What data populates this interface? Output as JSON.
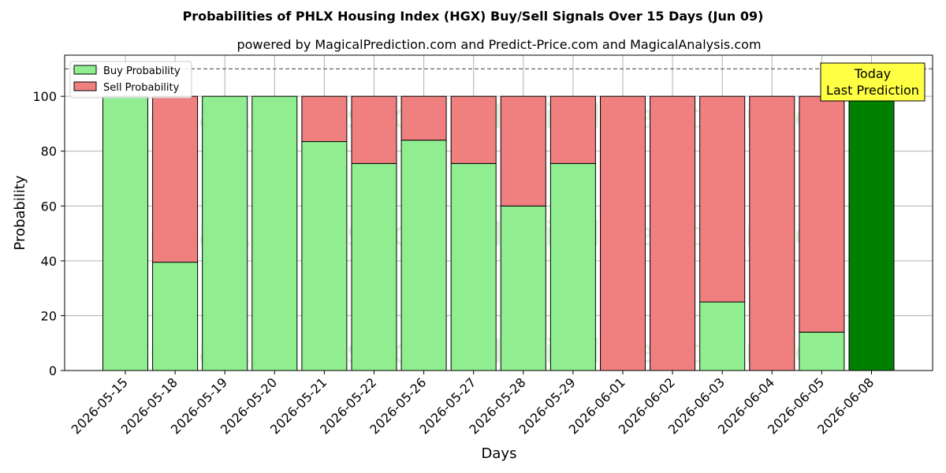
{
  "chart_data": {
    "type": "bar",
    "stacked": true,
    "title": "Probabilities of PHLX Housing Index (HGX) Buy/Sell Signals Over 15 Days (Jun 09)",
    "subtitle": "powered by MagicalPrediction.com and Predict-Price.com and MagicalAnalysis.com",
    "xlabel": "Days",
    "ylabel": "Probability",
    "ylim": [
      0,
      115
    ],
    "yticks": [
      0,
      20,
      40,
      60,
      80,
      100
    ],
    "reference_line": 110,
    "grid": true,
    "legend_position": "top-left",
    "categories": [
      "2026-05-15",
      "2026-05-18",
      "2026-05-19",
      "2026-05-20",
      "2026-05-21",
      "2026-05-22",
      "2026-05-26",
      "2026-05-27",
      "2026-05-28",
      "2026-05-29",
      "2026-06-01",
      "2026-06-02",
      "2026-06-03",
      "2026-06-04",
      "2026-06-05",
      "2026-06-08"
    ],
    "series": [
      {
        "name": "Buy Probability",
        "color": "#90ee90",
        "values": [
          100,
          39.5,
          100,
          100,
          83.5,
          75.5,
          84,
          75.5,
          60,
          75.5,
          0,
          0,
          25,
          0,
          14,
          100
        ]
      },
      {
        "name": "Sell Probability",
        "color": "#f08080",
        "values": [
          0,
          60.5,
          0,
          0,
          16.5,
          24.5,
          16,
          24.5,
          40,
          24.5,
          100,
          100,
          75,
          100,
          86,
          0
        ]
      }
    ],
    "highlight": {
      "index": 15,
      "color": "#008000",
      "label_lines": [
        "Today",
        "Last Prediction"
      ],
      "box_color": "#ffff44"
    },
    "watermarks": [
      "MagicalAnalysis.com",
      "MagicalPrediction.com"
    ]
  }
}
